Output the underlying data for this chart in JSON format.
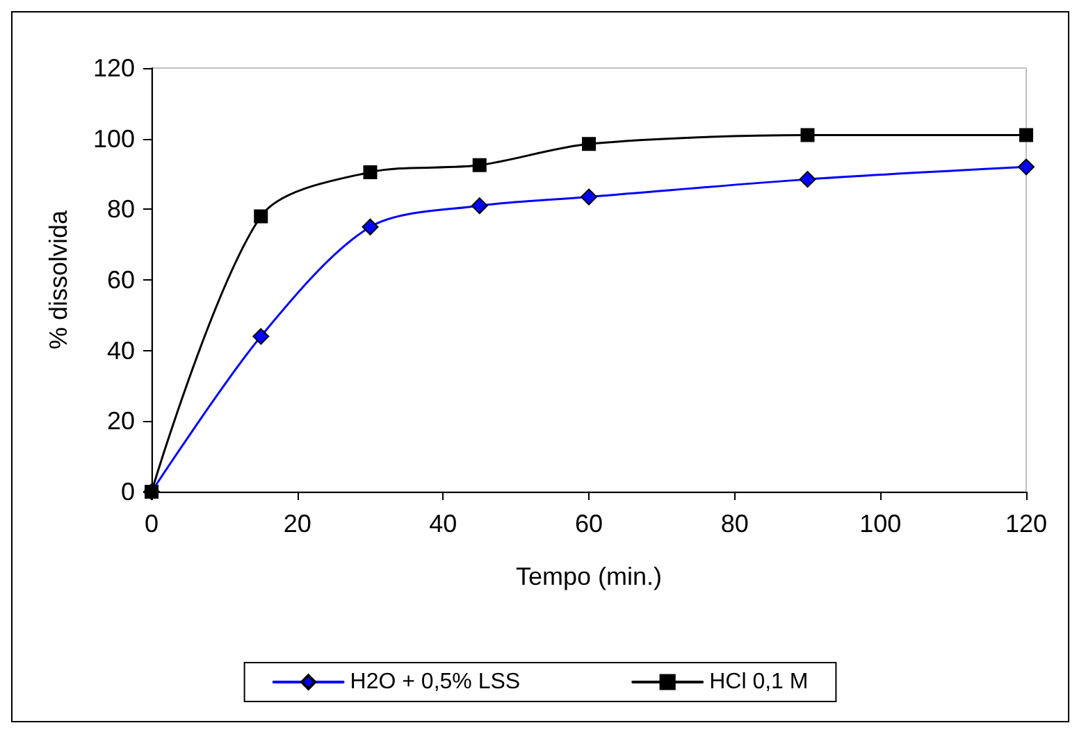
{
  "chart_data": {
    "type": "line",
    "xlabel": "Tempo (min.)",
    "ylabel": "% dissolvida",
    "x": [
      0,
      15,
      30,
      45,
      60,
      90,
      120
    ],
    "series": [
      {
        "name": "H2O + 0,5% LSS",
        "color": "#0000ff",
        "marker": "diamond",
        "values": [
          0,
          44,
          75,
          81,
          83.5,
          88.5,
          92
        ]
      },
      {
        "name": "HCl 0,1 M",
        "color": "#000000",
        "marker": "square",
        "values": [
          0,
          78,
          90.5,
          92.5,
          98.5,
          101,
          101
        ]
      }
    ],
    "xlim": [
      0,
      120
    ],
    "xticks": [
      0,
      20,
      40,
      60,
      80,
      100,
      120
    ],
    "ylim": [
      0,
      120
    ],
    "yticks": [
      0,
      20,
      40,
      60,
      80,
      100,
      120
    ],
    "grid": false,
    "legend": "bottom",
    "line_style": "solid"
  }
}
